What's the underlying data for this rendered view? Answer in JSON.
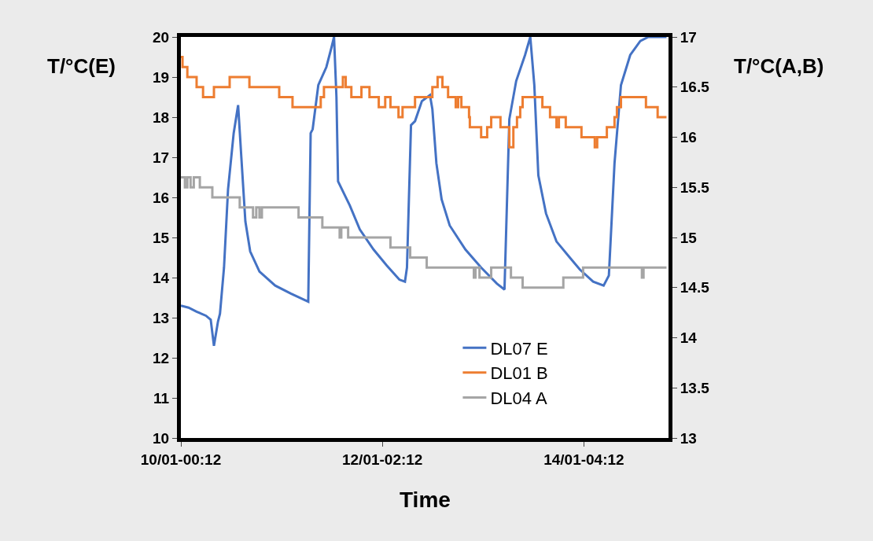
{
  "chart_data": {
    "type": "line",
    "xlabel": "Time",
    "ylabel": "T/°C(E)",
    "y2label": "T/°C(A,B)",
    "xlim": [
      "--01-10T00:12",
      "--01-15T01:12"
    ],
    "xticks": [
      {
        "value": "--01-10T00:12",
        "label": "10/01-00:12"
      },
      {
        "value": "--01-12T02:12",
        "label": "12/01-02:12"
      },
      {
        "value": "--01-14T04:12",
        "label": "14/01-04:12"
      }
    ],
    "ylim": [
      10,
      20
    ],
    "yticks": [
      10,
      11,
      12,
      13,
      14,
      15,
      16,
      17,
      18,
      19,
      20
    ],
    "y2lim": [
      13,
      17
    ],
    "y2ticks": [
      13,
      13.5,
      14,
      14.5,
      15,
      15.5,
      16,
      16.5,
      17
    ],
    "legend": "bottom right",
    "marker": "none",
    "line_style": "solid",
    "series": [
      {
        "name": "DL07 E",
        "color": "#4472c4",
        "x": [
          "--01-10T00:12",
          "--01-10T02:06",
          "--01-10T04:06",
          "--01-10T06:24",
          "--01-10T07:36",
          "--01-10T08:24",
          "--01-10T09:24",
          "--01-10T09:54",
          "--01-10T10:54",
          "--01-10T11:54",
          "--01-10T13:18",
          "--01-10T14:24",
          "--01-10T15:12",
          "--01-10T16:12",
          "--01-10T17:24",
          "--01-10T19:42",
          "--01-10T23:36",
          "--01-11T03:30",
          "--01-11T07:48",
          "--01-11T08:24",
          "--01-11T08:54",
          "--01-11T10:18",
          "--01-11T12:18",
          "--01-11T13:36",
          "--01-11T14:12",
          "--01-11T14:48",
          "--01-11T15:12",
          "--01-11T18:06",
          "--01-11T20:36",
          "--01-12T00:00",
          "--01-12T03:18",
          "--01-12T06:24",
          "--01-12T07:48",
          "--01-12T08:18",
          "--01-12T09:18",
          "--01-12T10:18",
          "--01-12T12:00",
          "--01-12T14:00",
          "--01-12T14:36",
          "--01-12T15:36",
          "--01-12T16:54",
          "--01-12T18:54",
          "--01-12T22:48",
          "--01-13T02:42",
          "--01-13T06:36",
          "--01-13T08:30",
          "--01-13T09:42",
          "--01-13T11:24",
          "--01-13T13:36",
          "--01-13T14:54",
          "--01-13T15:54",
          "--01-13T16:54",
          "--01-13T18:48",
          "--01-13T21:24",
          "--01-14T00:42",
          "--01-14T03:12",
          "--01-14T06:30",
          "--01-14T09:06",
          "--01-14T10:24",
          "--01-14T11:48",
          "--01-14T13:24",
          "--01-14T15:42",
          "--01-14T18:12",
          "--01-14T20:12",
          "--01-15T00:42"
        ],
        "values": [
          13.3,
          13.25,
          13.15,
          13.05,
          12.95,
          12.3,
          12.9,
          13.1,
          14.25,
          16.2,
          17.6,
          18.3,
          17.0,
          15.4,
          14.65,
          14.15,
          13.8,
          13.6,
          13.4,
          17.6,
          17.7,
          18.8,
          19.25,
          19.75,
          20,
          18.5,
          16.4,
          15.8,
          15.2,
          14.7,
          14.3,
          13.95,
          13.9,
          14.25,
          17.8,
          17.9,
          18.4,
          18.55,
          18.2,
          16.85,
          15.95,
          15.3,
          14.7,
          14.25,
          13.85,
          13.7,
          17.95,
          18.9,
          19.55,
          20,
          18.8,
          16.55,
          15.6,
          14.9,
          14.5,
          14.2,
          13.9,
          13.8,
          14.05,
          16.85,
          18.8,
          19.55,
          19.9,
          20,
          20
        ]
      },
      {
        "name": "DL01 B",
        "type": "step",
        "axis": "y2",
        "color": "#ed7d31",
        "x": [
          "--01-10T00:12",
          "--01-10T00:36",
          "--01-10T01:48",
          "--01-10T04:06",
          "--01-10T05:42",
          "--01-10T08:24",
          "--01-10T12:18",
          "--01-10T17:12",
          "--01-11T00:36",
          "--01-11T03:54",
          "--01-11T10:54",
          "--01-11T11:42",
          "--01-11T16:24",
          "--01-11T17:06",
          "--01-11T18:30",
          "--01-11T21:00",
          "--01-11T23:00",
          "--01-12T01:18",
          "--01-12T02:54",
          "--01-12T04:12",
          "--01-12T06:12",
          "--01-12T07:12",
          "--01-12T10:18",
          "--01-12T14:36",
          "--01-12T15:54",
          "--01-12T17:06",
          "--01-12T18:30",
          "--01-12T20:24",
          "--01-12T21:00",
          "--01-12T21:48",
          "--01-12T23:42",
          "--01-12T23:54",
          "--01-13T02:42",
          "--01-13T04:12",
          "--01-13T05:12",
          "--01-13T07:30",
          "--01-13T09:42",
          "--01-13T10:42",
          "--01-13T11:36",
          "--01-13T12:24",
          "--01-13T13:00",
          "--01-13T17:54",
          "--01-13T19:48",
          "--01-13T21:24",
          "--01-13T22:00",
          "--01-13T23:42",
          "--01-14T03:36",
          "--01-14T06:54",
          "--01-14T07:30",
          "--01-14T09:54",
          "--01-14T11:48",
          "--01-14T12:24",
          "--01-14T13:24",
          "--01-14T19:36",
          "--01-14T22:30",
          "--01-15T00:42"
        ],
        "values": [
          16.8,
          16.7,
          16.6,
          16.5,
          16.4,
          16.5,
          16.6,
          16.5,
          16.4,
          16.3,
          16.4,
          16.5,
          16.6,
          16.5,
          16.4,
          16.5,
          16.4,
          16.3,
          16.4,
          16.3,
          16.2,
          16.3,
          16.4,
          16.5,
          16.6,
          16.5,
          16.4,
          16.3,
          16.4,
          16.3,
          16.2,
          16.1,
          16.0,
          16.1,
          16.2,
          16.1,
          15.9,
          16.1,
          16.2,
          16.3,
          16.4,
          16.3,
          16.2,
          16.1,
          16.2,
          16.1,
          16.0,
          15.9,
          16.0,
          16.1,
          16.2,
          16.3,
          16.4,
          16.3,
          16.2,
          16.2
        ]
      },
      {
        "name": "DL04 A",
        "type": "step",
        "axis": "y2",
        "color": "#a5a5a5",
        "x": [
          "--01-10T00:12",
          "--01-10T01:12",
          "--01-10T01:48",
          "--01-10T02:36",
          "--01-10T03:24",
          "--01-10T04:54",
          "--01-10T08:00",
          "--01-10T14:48",
          "--01-10T18:06",
          "--01-10T18:54",
          "--01-10T19:42",
          "--01-10T20:18",
          "--01-11T05:24",
          "--01-11T11:18",
          "--01-11T15:36",
          "--01-11T16:00",
          "--01-11T17:42",
          "--01-12T04:12",
          "--01-12T09:06",
          "--01-12T13:12",
          "--01-13T00:54",
          "--01-13T01:18",
          "--01-13T02:18",
          "--01-13T05:12",
          "--01-13T10:06",
          "--01-13T13:00",
          "--01-13T23:06",
          "--01-14T04:00",
          "--01-14T18:36",
          "--01-14T19:00",
          "--01-15T00:42"
        ],
        "values": [
          15.6,
          15.5,
          15.6,
          15.5,
          15.6,
          15.5,
          15.4,
          15.3,
          15.2,
          15.3,
          15.2,
          15.3,
          15.2,
          15.1,
          15.0,
          15.1,
          15.0,
          14.9,
          14.8,
          14.7,
          14.6,
          14.7,
          14.6,
          14.7,
          14.6,
          14.5,
          14.6,
          14.7,
          14.6,
          14.7,
          14.7
        ]
      }
    ]
  }
}
